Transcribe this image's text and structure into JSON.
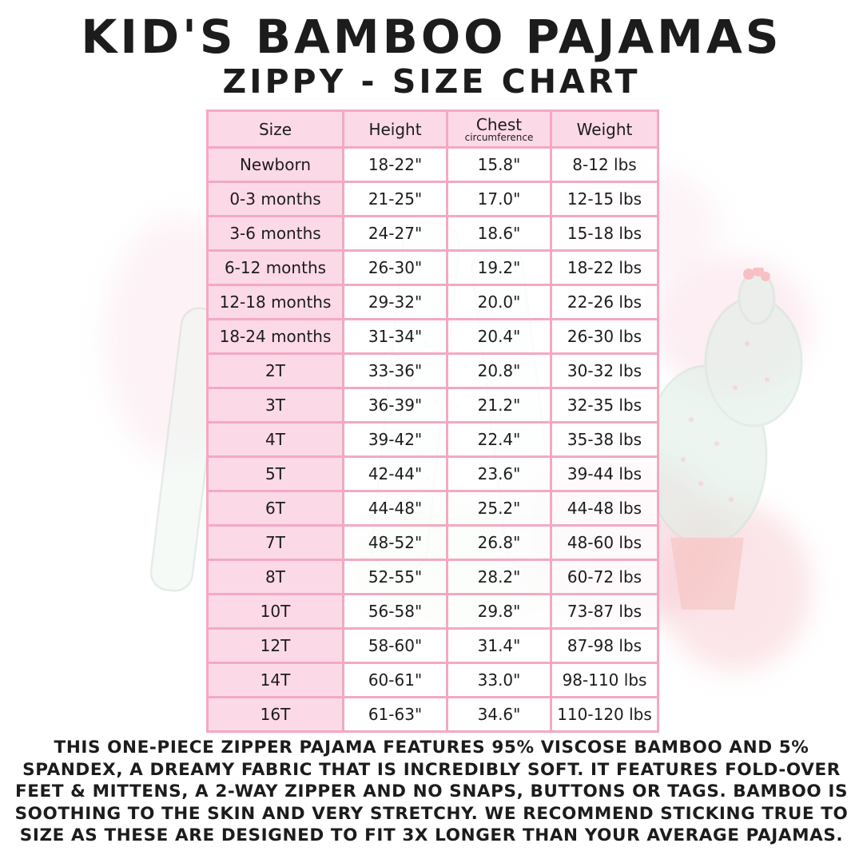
{
  "title": "KID'S BAMBOO PAJAMAS",
  "subtitle": "ZIPPY - SIZE CHART",
  "chart_data": {
    "type": "table",
    "title": "KID'S BAMBOO PAJAMAS",
    "subtitle": "ZIPPY - SIZE CHART",
    "columns": [
      "Size",
      "Height",
      "Chest circumference",
      "Weight"
    ],
    "rows": [
      [
        "Newborn",
        "18-22\"",
        "15.8\"",
        "8-12 lbs"
      ],
      [
        "0-3 months",
        "21-25\"",
        "17.0\"",
        "12-15 lbs"
      ],
      [
        "3-6 months",
        "24-27\"",
        "18.6\"",
        "15-18 lbs"
      ],
      [
        "6-12 months",
        "26-30\"",
        "19.2\"",
        "18-22 lbs"
      ],
      [
        "12-18 months",
        "29-32\"",
        "20.0\"",
        "22-26 lbs"
      ],
      [
        "18-24 months",
        "31-34\"",
        "20.4\"",
        "26-30 lbs"
      ],
      [
        "2T",
        "33-36\"",
        "20.8\"",
        "30-32 lbs"
      ],
      [
        "3T",
        "36-39\"",
        "21.2\"",
        "32-35 lbs"
      ],
      [
        "4T",
        "39-42\"",
        "22.4\"",
        "35-38 lbs"
      ],
      [
        "5T",
        "42-44\"",
        "23.6\"",
        "39-44 lbs"
      ],
      [
        "6T",
        "44-48\"",
        "25.2\"",
        "44-48 lbs"
      ],
      [
        "7T",
        "48-52\"",
        "26.8\"",
        "48-60 lbs"
      ],
      [
        "8T",
        "52-55\"",
        "28.2\"",
        "60-72 lbs"
      ],
      [
        "10T",
        "56-58\"",
        "29.8\"",
        "73-87 lbs"
      ],
      [
        "12T",
        "58-60\"",
        "31.4\"",
        "87-98 lbs"
      ],
      [
        "14T",
        "60-61\"",
        "33.0\"",
        "98-110 lbs"
      ],
      [
        "16T",
        "61-63\"",
        "34.6\"",
        "110-120 lbs"
      ]
    ]
  },
  "table": {
    "headers": {
      "size": "Size",
      "height": "Height",
      "chest": "Chest",
      "chest_sub": "circumference",
      "weight": "Weight"
    }
  },
  "footer": {
    "lines": [
      "THIS ONE-PIECE ZIPPER PAJAMA FEATURES 95% VISCOSE BAMBOO AND 5%",
      "SPANDEX, A DREAMY FABRIC THAT IS INCREDIBLY SOFT. IT FEATURES FOLD-OVER",
      "FEET & MITTENS, A 2-WAY ZIPPER AND NO SNAPS, BUTTONS OR TAGS. BAMBOO IS",
      "SOOTHING TO THE SKIN AND VERY STRETCHY. WE RECOMMEND STICKING TRUE TO",
      "SIZE AS THESE ARE DESIGNED TO FIT 3X LONGER THAN YOUR AVERAGE PAJAMAS."
    ]
  },
  "colors": {
    "grid_pink": "#f3a9c3",
    "cell_pink": "#fcd9e6",
    "text": "#1c1c1c",
    "watermark_green": "#e0efe6",
    "watermark_pink": "#f8cdd8"
  }
}
